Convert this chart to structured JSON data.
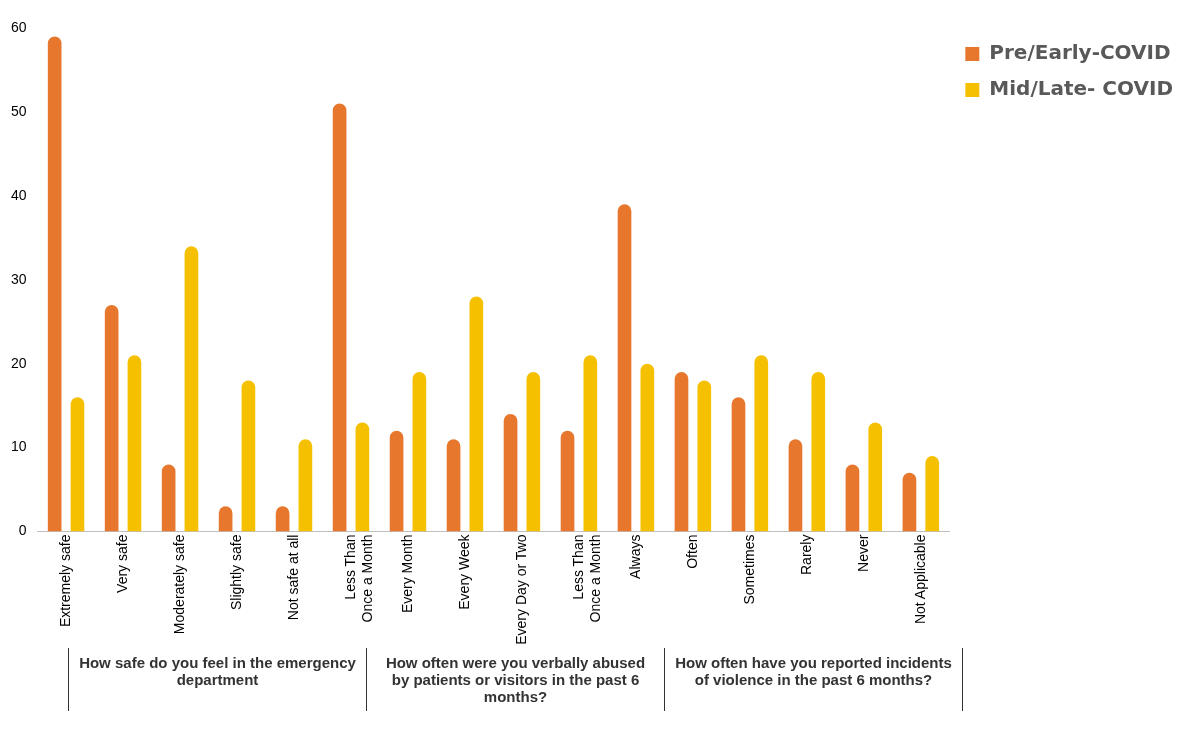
{
  "chart_data": {
    "type": "bar",
    "categories": [
      "Extremely safe",
      "Very safe",
      "Moderately safe",
      "Slightly safe",
      "Not safe at all",
      "Less Than\nOnce a Month",
      "Every Month",
      "Every Week",
      "Every Day or Two",
      "Less Than\nOnce a Month",
      "Always",
      "Often",
      "Sometimes",
      "Rarely",
      "Never",
      "Not Applicable"
    ],
    "series": [
      {
        "name": "Pre/Early-COVID",
        "color": "#e8772e",
        "values": [
          59,
          27,
          8,
          3,
          3,
          51,
          12,
          11,
          14,
          12,
          39,
          19,
          16,
          11,
          8,
          7
        ]
      },
      {
        "name": "Mid/Late- COVID",
        "color": "#f5c000",
        "values": [
          16,
          21,
          34,
          18,
          11,
          13,
          19,
          28,
          19,
          21,
          20,
          18,
          21,
          19,
          13,
          9
        ]
      }
    ],
    "ylim": [
      0,
      60
    ],
    "yticks": [
      0,
      10,
      20,
      30,
      40,
      50,
      60
    ],
    "grid": false,
    "legend": "top right",
    "annotations": [
      "How safe do you feel in the emergency department",
      "How often were you verbally abused by patients or visitors in the past 6 months?",
      "How often have you reported incidents of violence in the past 6 months?"
    ]
  }
}
